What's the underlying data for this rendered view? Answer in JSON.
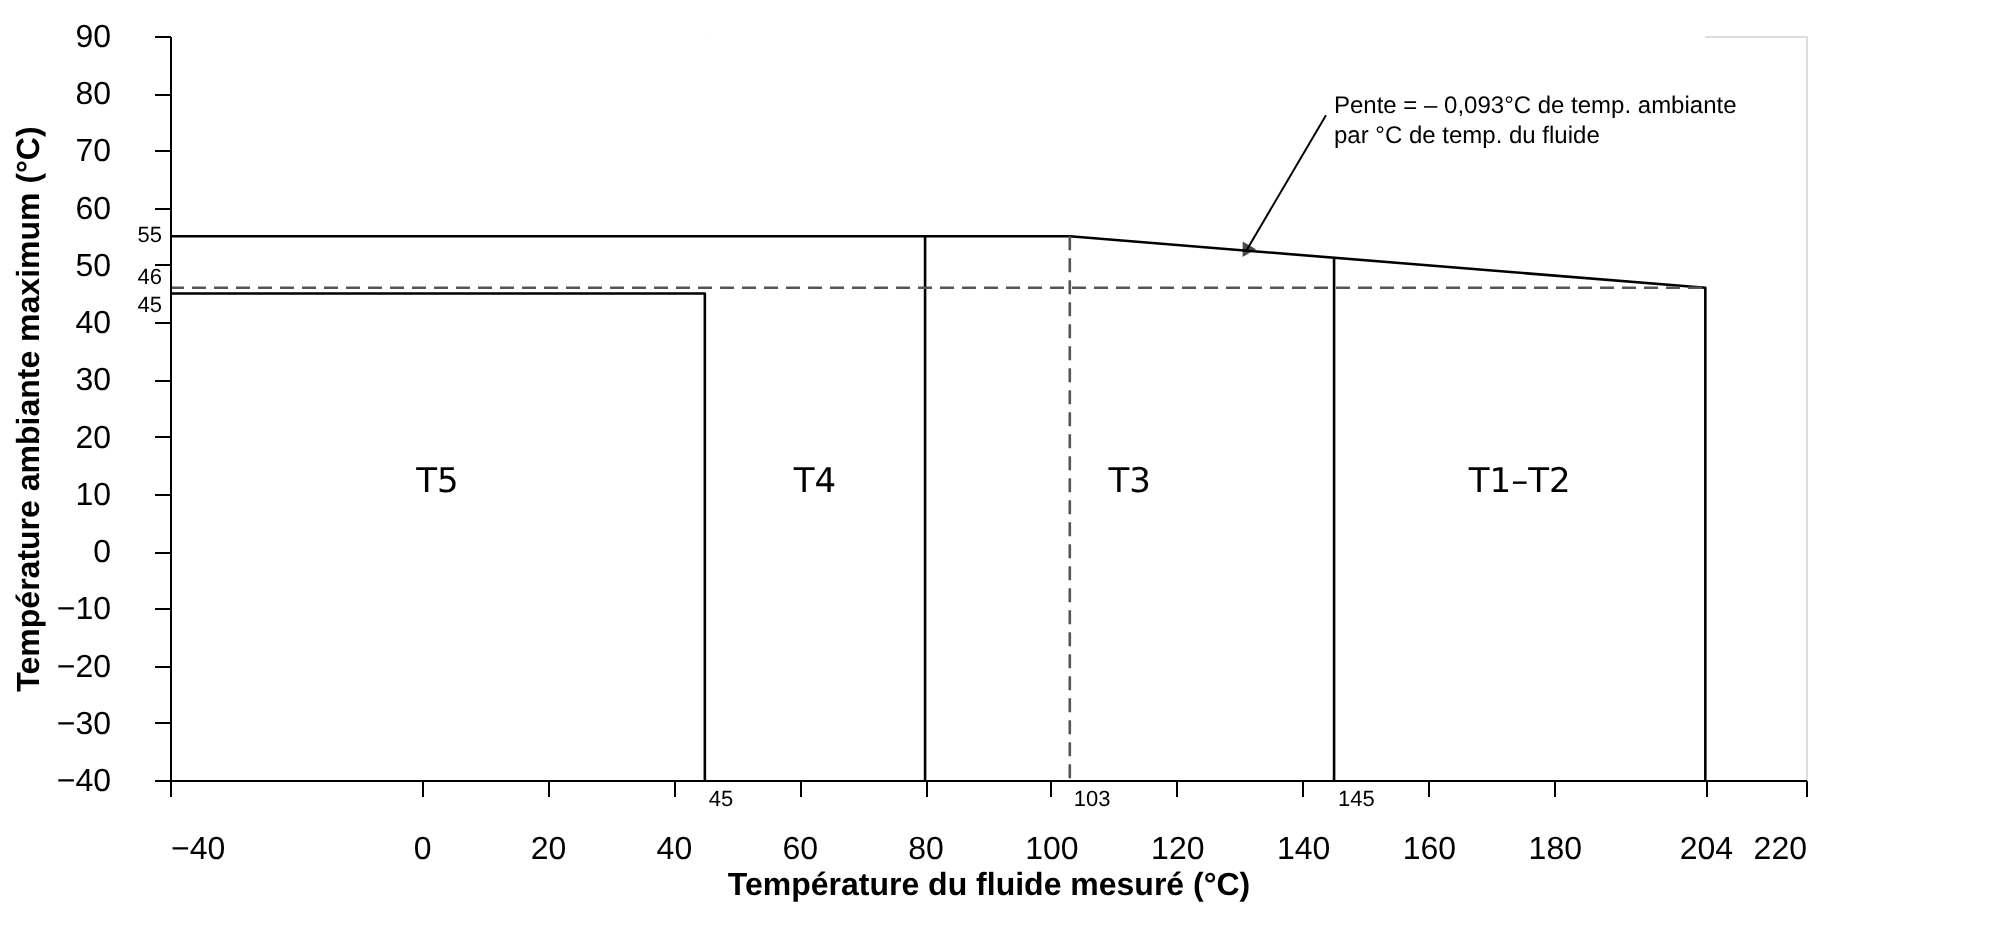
{
  "chart_data": {
    "type": "line",
    "xlabel": "Température du fluide mesuré (°C)",
    "ylabel": "Température ambiante maximum (°C)",
    "xlim": [
      -40,
      220
    ],
    "ylim": [
      -40,
      90
    ],
    "xticks": [
      -40,
      0,
      20,
      40,
      60,
      80,
      100,
      120,
      140,
      160,
      180,
      204,
      220
    ],
    "yticks": [
      -40,
      -30,
      -20,
      -10,
      0,
      10,
      20,
      30,
      40,
      50,
      60,
      70,
      80,
      90
    ],
    "grid": false,
    "marker": "none",
    "bands": [
      {
        "axis": "x",
        "from": -40,
        "to": 45,
        "label": "T5",
        "color": "#ffffff"
      },
      {
        "axis": "x",
        "from": 45,
        "to": 80,
        "label": "T4",
        "color": "#ffffff"
      },
      {
        "axis": "x",
        "from": 80,
        "to": 145,
        "label": "T3",
        "color": "#ffffff"
      },
      {
        "axis": "x",
        "from": 145,
        "to": 204,
        "label": "T1–T2",
        "color": "#ffffff"
      }
    ],
    "series": [
      {
        "color": "#000000",
        "line_style": "solid",
        "x": [
          -40,
          103,
          204,
          204
        ],
        "values": [
          55,
          55,
          46,
          -40
        ]
      },
      {
        "color": "#000000",
        "line_style": "solid",
        "x": [
          -40,
          45,
          45
        ],
        "values": [
          45,
          45,
          -40
        ]
      },
      {
        "color": "#000000",
        "line_style": "solid",
        "x": [
          80,
          80
        ],
        "values": [
          55,
          -40
        ]
      },
      {
        "color": "#000000",
        "line_style": "solid",
        "x": [
          145,
          145
        ],
        "values": [
          51.1,
          -40
        ]
      },
      {
        "color": "#555555",
        "line_style": "dashed",
        "x": [
          103,
          103
        ],
        "values": [
          55,
          -40
        ]
      },
      {
        "color": "#555555",
        "line_style": "dashed",
        "x": [
          -40,
          204
        ],
        "values": [
          46,
          46
        ]
      }
    ],
    "annotations": [
      {
        "text": "55",
        "x": -40,
        "y": 55
      },
      {
        "text": "46",
        "x": -40,
        "y": 46
      },
      {
        "text": "45",
        "x": -40,
        "y": 45
      },
      {
        "text": "45",
        "x": 45,
        "y": -40
      },
      {
        "text": "103",
        "x": 103,
        "y": -40
      },
      {
        "text": "145",
        "x": 145,
        "y": -40
      },
      {
        "text": "Pente = – 0,093°C de temp. ambiante\npar °C de temp. du fluide",
        "x": 131,
        "y": 52.4
      }
    ]
  }
}
